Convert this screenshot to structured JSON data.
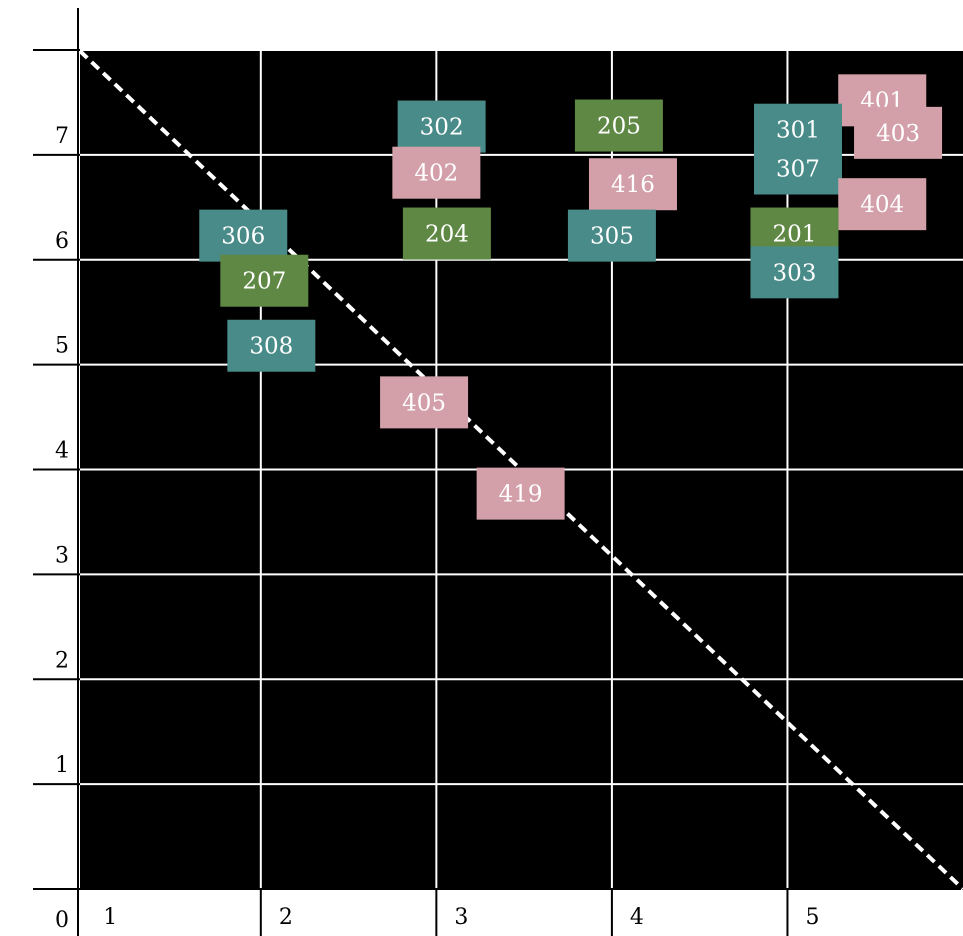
{
  "chart_data": {
    "type": "scatter",
    "title": "",
    "xlabel": "",
    "ylabel": "",
    "xlim": [
      0.97,
      6.0
    ],
    "ylim": [
      0.0,
      8.0
    ],
    "origin_label": "0",
    "x_ticks": [
      1,
      2,
      3,
      4,
      5
    ],
    "y_ticks": [
      1,
      2,
      3,
      4,
      5,
      6,
      7
    ],
    "grid": true,
    "background": "#000000",
    "grid_color": "#ffffff",
    "diagonal": {
      "style": "dashed",
      "color": "#ffffff",
      "from": [
        0.97,
        7.99
      ],
      "to": [
        6.0,
        0.0
      ]
    },
    "colors": {
      "green": "#5e8844",
      "teal": "#488b88",
      "pink": "#d3a0aa"
    },
    "points": [
      {
        "label": "401",
        "x": 5.54,
        "y": 7.52,
        "color": "pink"
      },
      {
        "label": "403",
        "x": 5.63,
        "y": 7.21,
        "color": "pink"
      },
      {
        "label": "302",
        "x": 3.03,
        "y": 7.27,
        "color": "teal"
      },
      {
        "label": "205",
        "x": 4.04,
        "y": 7.28,
        "color": "green"
      },
      {
        "label": "301",
        "x": 5.06,
        "y": 7.24,
        "color": "teal"
      },
      {
        "label": "307",
        "x": 5.06,
        "y": 6.87,
        "color": "teal"
      },
      {
        "label": "402",
        "x": 3.0,
        "y": 6.83,
        "color": "pink"
      },
      {
        "label": "416",
        "x": 4.12,
        "y": 6.72,
        "color": "pink"
      },
      {
        "label": "404",
        "x": 5.54,
        "y": 6.53,
        "color": "pink"
      },
      {
        "label": "306",
        "x": 1.9,
        "y": 6.23,
        "color": "teal"
      },
      {
        "label": "204",
        "x": 3.06,
        "y": 6.25,
        "color": "green"
      },
      {
        "label": "305",
        "x": 4.0,
        "y": 6.23,
        "color": "teal"
      },
      {
        "label": "201",
        "x": 5.04,
        "y": 6.25,
        "color": "green"
      },
      {
        "label": "303",
        "x": 5.04,
        "y": 5.88,
        "color": "teal"
      },
      {
        "label": "207",
        "x": 2.02,
        "y": 5.8,
        "color": "green"
      },
      {
        "label": "308",
        "x": 2.06,
        "y": 5.18,
        "color": "teal"
      },
      {
        "label": "405",
        "x": 2.93,
        "y": 4.64,
        "color": "pink"
      },
      {
        "label": "419",
        "x": 3.48,
        "y": 3.77,
        "color": "pink"
      }
    ]
  }
}
